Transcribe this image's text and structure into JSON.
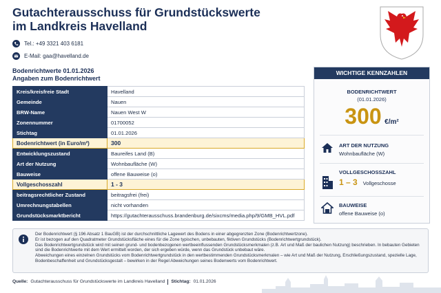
{
  "header": {
    "title_lines": [
      "Gutachterausschuss für Grundstückswerte",
      "im Landkreis Havelland"
    ],
    "phone": "Tel.: +49 3321 403 6181",
    "email": "E-Mail: gaa@havelland.de"
  },
  "section": {
    "title": "Bodenrichtwerte 01.01.2026",
    "subtitle": "Angaben zum Bodenrichtwert"
  },
  "table": {
    "rows": [
      {
        "label": "Kreis/kreisfreie Stadt",
        "value": "Havelland"
      },
      {
        "label": "Gemeinde",
        "value": "Nauen"
      },
      {
        "label": "BRW-Name",
        "value": "Nauen West W"
      },
      {
        "label": "Zonennummer",
        "value": "01700052"
      },
      {
        "label": "Stichtag",
        "value": "01.01.2026"
      },
      {
        "label": "Bodenrichtwert (in Euro/m²)",
        "value": "300",
        "highlight": true
      },
      {
        "label": "Entwicklungszustand",
        "value": "Baureifes Land (B)"
      },
      {
        "label": "Art der Nutzung",
        "value": "Wohnbaufläche (W)"
      },
      {
        "label": "Bauweise",
        "value": "offene Bauweise (o)"
      },
      {
        "label": "Vollgeschosszahl",
        "value": "1 - 3",
        "highlight": true
      },
      {
        "label": "beitragsrechtlicher Zustand",
        "value": "beitragsfrei (frei)"
      },
      {
        "label": "Umrechnungstabellen",
        "value": "nicht vorhanden"
      },
      {
        "label": "Grundstücksmarktbericht",
        "value": "https://gutachterausschuss.brandenburg.de/sixcms/media.php/9/GMB_HVL.pdf"
      }
    ]
  },
  "panel": {
    "title": "WICHTIGE KENNZAHLEN",
    "brw": {
      "label": "BODENRICHTWERT",
      "date": "(01.01.2026)",
      "value": "300",
      "unit": "€/m²"
    },
    "nutzung": {
      "label": "ART DER NUTZUNG",
      "value": "Wohnbaufläche (W)"
    },
    "geschosse": {
      "label": "VOLLGESCHOSSZAHL",
      "value": "1 – 3",
      "unit": "Vollgeschosse"
    },
    "bauweise": {
      "label": "BAUWEISE",
      "value": "offene Bauweise (o)"
    }
  },
  "info": {
    "paragraphs": [
      "Der Bodenrichtwert (§ 196 Absatz 1 BauGB) ist der durchschnittliche Lagewert des Bodens in einer abgegrenzten Zone (Bodenrichtwertzone).",
      "Er ist bezogen auf den Quadratmeter Grundstücksfläche eines für die Zone typischen, unbebauten, fiktiven Grundstücks (Bodenrichtwertgrundstück).",
      "Das Bodenrichtwertgrundstück wird mit seinen grund- und bodenbezogenen wertbeeinflussenden Grundstücksmerkmalen (z.B. Art und Maß der baulichen Nutzung) beschrieben. In bebauten Gebieten sind die Bodenrichtwerte mit dem Wert ermittelt worden, der sich ergeben würde, wenn das Grundstück unbebaut wäre.",
      "Abweichungen eines einzelnen Grundstücks vom Bodenrichtwertgrundstück in den wertbestimmenden Grundstücksmerkmalen – wie Art und Maß der Nutzung, Erschließungszustand, spezielle Lage, Bodenbeschaffenheit und Grundstücksgestalt – bewirken in der Regel Abweichungen seines Bodenwerts vom Bodenrichtwert."
    ]
  },
  "footer": {
    "source_label": "Quelle:",
    "source": "Gutachterausschuss für Grundstückswerte im Landkreis Havelland",
    "date_label": "Stichtag:",
    "date": "01.01.2026"
  }
}
